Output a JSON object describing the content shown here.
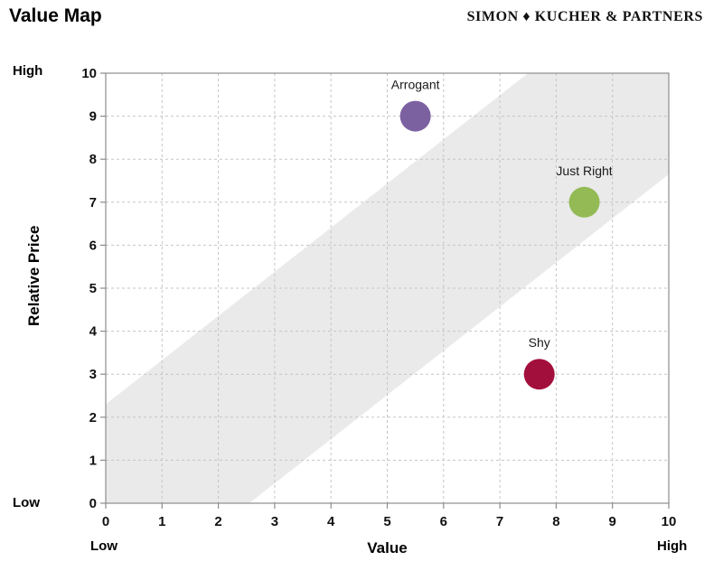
{
  "header": {
    "title": "Value Map",
    "brand": "SIMON ♦ KUCHER & PARTNERS"
  },
  "colors": {
    "band": "#EAEAEA",
    "grid": "#C5C5C5",
    "axis": "#8C8C8C",
    "tick_text": "#111111",
    "label_text": "#1a1a1a"
  },
  "chart_data": {
    "type": "scatter",
    "title": "Value Map",
    "xlabel": "Value",
    "ylabel": "Relative Price",
    "xlim": [
      0,
      10
    ],
    "ylim": [
      0,
      10
    ],
    "xticks": [
      0,
      1,
      2,
      3,
      4,
      5,
      6,
      7,
      8,
      9,
      10
    ],
    "yticks": [
      0,
      1,
      2,
      3,
      4,
      5,
      6,
      7,
      8,
      9,
      10
    ],
    "grid": "dashed",
    "legend": "none",
    "axis_endpoint_labels": {
      "x_low": "Low",
      "x_high": "High",
      "y_low": "Low",
      "y_high": "High"
    },
    "band": {
      "description": "diagonal value-for-money corridor",
      "polygon_x": [
        0,
        2.55,
        10,
        10,
        7.5,
        0
      ],
      "polygon_y": [
        0,
        0,
        7.65,
        10,
        10,
        2.3
      ],
      "color": "#EAEAEA"
    },
    "points": [
      {
        "label": "Arrogant",
        "x": 5.5,
        "y": 9,
        "color": "#7C61A1"
      },
      {
        "label": "Just Right",
        "x": 8.5,
        "y": 7,
        "color": "#93BA55"
      },
      {
        "label": "Shy",
        "x": 7.7,
        "y": 3,
        "color": "#A30F3D"
      }
    ]
  }
}
